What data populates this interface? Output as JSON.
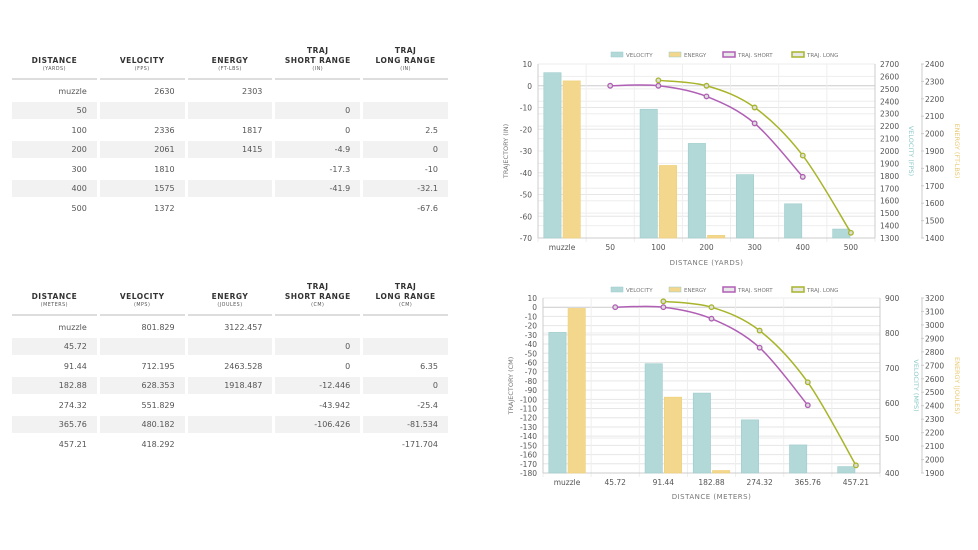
{
  "tables": [
    {
      "headers": [
        {
          "title": "DISTANCE",
          "unit": "(YARDS)"
        },
        {
          "title": "VELOCITY",
          "unit": "(FPS)"
        },
        {
          "title": "ENERGY",
          "unit": "(FT-LBS)"
        },
        {
          "title": "TRAJ\nSHORT RANGE",
          "unit": "(IN)"
        },
        {
          "title": "TRAJ\nLONG RANGE",
          "unit": "(IN)"
        }
      ],
      "rows": [
        [
          "muzzle",
          "2630",
          "2303",
          "",
          ""
        ],
        [
          "50",
          "",
          "",
          "0",
          ""
        ],
        [
          "100",
          "2336",
          "1817",
          "0",
          "2.5"
        ],
        [
          "200",
          "2061",
          "1415",
          "-4.9",
          "0"
        ],
        [
          "300",
          "1810",
          "",
          "-17.3",
          "-10"
        ],
        [
          "400",
          "1575",
          "",
          "-41.9",
          "-32.1"
        ],
        [
          "500",
          "1372",
          "",
          "",
          "-67.6"
        ]
      ]
    },
    {
      "headers": [
        {
          "title": "DISTANCE",
          "unit": "(METERS)"
        },
        {
          "title": "VELOCITY",
          "unit": "(MPS)"
        },
        {
          "title": "ENERGY",
          "unit": "(JOULES)"
        },
        {
          "title": "TRAJ\nSHORT RANGE",
          "unit": "(CM)"
        },
        {
          "title": "TRAJ\nLONG RANGE",
          "unit": "(CM)"
        }
      ],
      "rows": [
        [
          "muzzle",
          "801.829",
          "3122.457",
          "",
          ""
        ],
        [
          "45.72",
          "",
          "",
          "0",
          ""
        ],
        [
          "91.44",
          "712.195",
          "2463.528",
          "0",
          "6.35"
        ],
        [
          "182.88",
          "628.353",
          "1918.487",
          "-12.446",
          "0"
        ],
        [
          "274.32",
          "551.829",
          "",
          "-43.942",
          "-25.4"
        ],
        [
          "365.76",
          "480.182",
          "",
          "-106.426",
          "-81.534"
        ],
        [
          "457.21",
          "418.292",
          "",
          "",
          "-171.704"
        ]
      ]
    }
  ],
  "chart_data": [
    {
      "type": "bar",
      "title": "",
      "xlabel": "DISTANCE (YARDS)",
      "ylabel": "TRAJECTORY (IN)",
      "y2label": "VELOCITY (FPS)",
      "y3label": "ENERGY (FT-LBS)",
      "categories": [
        "muzzle",
        "50",
        "100",
        "200",
        "300",
        "400",
        "500"
      ],
      "ylim": [
        -70,
        10
      ],
      "ystep": 10,
      "y2lim": [
        1300,
        2700
      ],
      "y2step": 100,
      "y3lim": [
        1400,
        2400
      ],
      "y3step": 100,
      "legend": "top",
      "series": [
        {
          "name": "VELOCITY",
          "type": "bar",
          "axis": "y2",
          "color": "#b2d8d8",
          "values": [
            2630,
            null,
            2336,
            2061,
            1810,
            1575,
            1372
          ]
        },
        {
          "name": "ENERGY",
          "type": "bar",
          "axis": "y3",
          "color": "#f3d78c",
          "values": [
            2303,
            null,
            1817,
            1415,
            null,
            null,
            null
          ]
        },
        {
          "name": "TRAJ. SHORT",
          "type": "line",
          "axis": "y",
          "color": "#b05fb5",
          "values": [
            null,
            0,
            0,
            -4.9,
            -17.3,
            -41.9,
            null
          ]
        },
        {
          "name": "TRAJ. LONG",
          "type": "line",
          "axis": "y",
          "color": "#a8b42a",
          "values": [
            null,
            null,
            2.5,
            0,
            -10,
            -32.1,
            -67.6
          ]
        }
      ]
    },
    {
      "type": "bar",
      "title": "",
      "xlabel": "DISTANCE (METERS)",
      "ylabel": "TRAJECTORY (CM)",
      "y2label": "VELOCITY (MPS)",
      "y3label": "ENERGY (JOULES)",
      "categories": [
        "muzzle",
        "45.72",
        "91.44",
        "182.88",
        "274.32",
        "365.76",
        "457.21"
      ],
      "ylim": [
        -180,
        10
      ],
      "ystep": 10,
      "y2lim": [
        400,
        900
      ],
      "y2step": 100,
      "y3lim": [
        1900,
        3200
      ],
      "y3step": 100,
      "legend": "top",
      "series": [
        {
          "name": "VELOCITY",
          "type": "bar",
          "axis": "y2",
          "color": "#b2d8d8",
          "values": [
            801.829,
            null,
            712.195,
            628.353,
            551.829,
            480.182,
            418.292
          ]
        },
        {
          "name": "ENERGY",
          "type": "bar",
          "axis": "y3",
          "color": "#f3d78c",
          "values": [
            3122.457,
            null,
            2463.528,
            1918.487,
            null,
            null,
            null
          ]
        },
        {
          "name": "TRAJ. SHORT",
          "type": "line",
          "axis": "y",
          "color": "#b05fb5",
          "values": [
            null,
            0,
            0,
            -12.446,
            -43.942,
            -106.426,
            null
          ]
        },
        {
          "name": "TRAJ. LONG",
          "type": "line",
          "axis": "y",
          "color": "#a8b42a",
          "values": [
            null,
            null,
            6.35,
            0,
            -25.4,
            -81.534,
            -171.704
          ]
        }
      ]
    }
  ]
}
